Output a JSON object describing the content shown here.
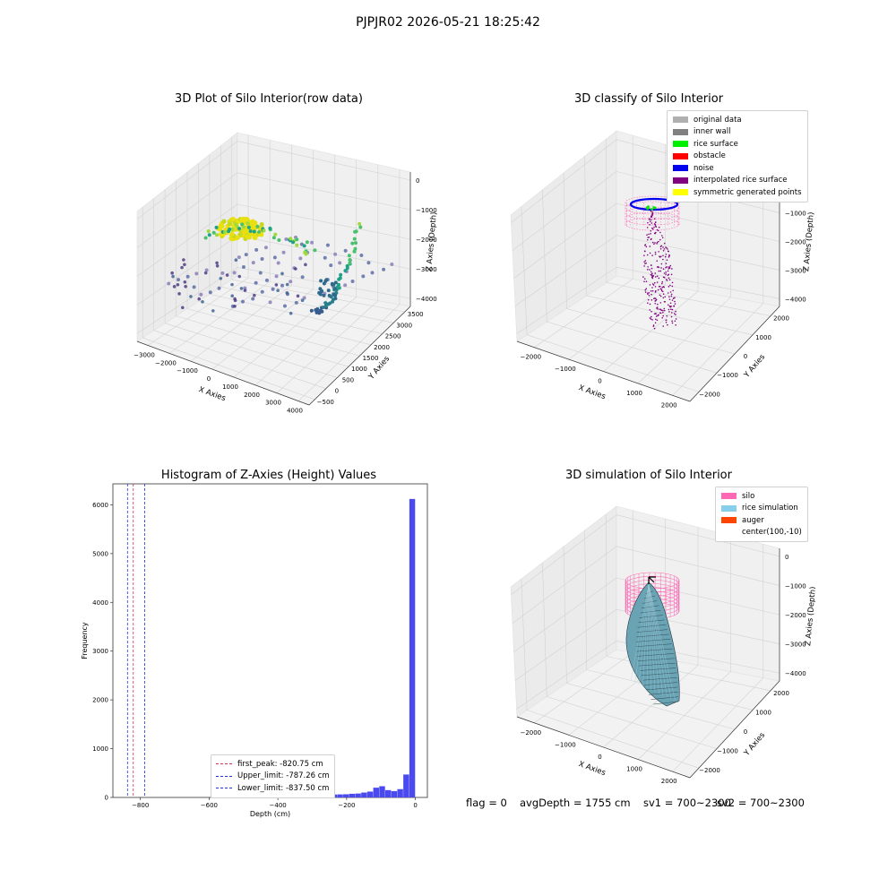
{
  "figure": {
    "suptitle": "PJPJR02 2026-05-21 18:25:42",
    "footer": {
      "flag": "flag = 0",
      "avg_depth": "avgDepth = 1755 cm",
      "sv1": "sv1 = 700~2300",
      "sv2": "sv2 = 700~2300"
    }
  },
  "colors": {
    "hist_bar": "#4a4af0",
    "first_peak": "#cc3355",
    "limit": "#2233dd",
    "original": "#b0b0b0",
    "inner_wall": "#808080",
    "rice_surface": "#00ee00",
    "obstacle": "#ff0000",
    "noise": "#0000ee",
    "interp": "#800080",
    "symmetric": "#ffff00",
    "silo": "#ff69b4",
    "rice_sim": "#87ceeb",
    "auger": "#ff4500"
  },
  "chart_data": [
    {
      "type": "scatter",
      "title": "3D Plot of Silo Interior(row data)",
      "xlabel": "X Axies",
      "ylabel": "Y Axies",
      "zlabel": "Z Axies (Depth)",
      "xticks": [
        "−3000",
        "−2000",
        "−1000",
        "0",
        "1000",
        "2000",
        "3000",
        "4000"
      ],
      "yticks": [
        "−500",
        "0",
        "500",
        "1000",
        "1500",
        "2000",
        "2500",
        "3000",
        "3500"
      ],
      "zticks": [
        "0",
        "−1000",
        "−2000",
        "−3000",
        "−4000"
      ],
      "colormap": "viridis"
    },
    {
      "type": "scatter",
      "title": "3D classify of Silo Interior",
      "xlabel": "X Axies",
      "ylabel": "Y Axies",
      "zlabel": "Z Axies (Depth)",
      "xticks": [
        "−2000",
        "−1000",
        "0",
        "1000",
        "2000"
      ],
      "yticks": [
        "−2000",
        "−1000",
        "0",
        "1000",
        "2000"
      ],
      "zticks": [
        "0",
        "−1000",
        "−2000",
        "−3000",
        "−4000"
      ],
      "legend": [
        "original data",
        "inner wall",
        "rice surface",
        "obstacle",
        "noise",
        "interpolated rice surface",
        "symmetric generated points"
      ]
    },
    {
      "type": "bar",
      "title": "Histogram of Z-Axies (Height) Values",
      "xlabel": "Depth (cm)",
      "ylabel": "Frequency",
      "xlim": [
        -880,
        35
      ],
      "ylim": [
        0,
        6430
      ],
      "xticks": [
        -800,
        -600,
        -400,
        -200,
        0
      ],
      "yticks": [
        0,
        1000,
        2000,
        3000,
        4000,
        5000,
        6000
      ],
      "bin_width": 17.5,
      "bins": [
        {
          "x": -525,
          "value": 12
        },
        {
          "x": -507.5,
          "value": 14
        },
        {
          "x": -490,
          "value": 16
        },
        {
          "x": -472.5,
          "value": 18
        },
        {
          "x": -455,
          "value": 22
        },
        {
          "x": -437.5,
          "value": 26
        },
        {
          "x": -420,
          "value": 40
        },
        {
          "x": -402.5,
          "value": 38
        },
        {
          "x": -385,
          "value": 30
        },
        {
          "x": -367.5,
          "value": 44
        },
        {
          "x": -350,
          "value": 36
        },
        {
          "x": -332.5,
          "value": 40
        },
        {
          "x": -315,
          "value": 42
        },
        {
          "x": -297.5,
          "value": 48
        },
        {
          "x": -280,
          "value": 45
        },
        {
          "x": -262.5,
          "value": 55
        },
        {
          "x": -245,
          "value": 60
        },
        {
          "x": -227.5,
          "value": 62
        },
        {
          "x": -210,
          "value": 65
        },
        {
          "x": -192.5,
          "value": 75
        },
        {
          "x": -175,
          "value": 80
        },
        {
          "x": -157.5,
          "value": 100
        },
        {
          "x": -140,
          "value": 120
        },
        {
          "x": -122.5,
          "value": 200
        },
        {
          "x": -105,
          "value": 230
        },
        {
          "x": -87.5,
          "value": 150
        },
        {
          "x": -70,
          "value": 130
        },
        {
          "x": -52.5,
          "value": 170
        },
        {
          "x": -35,
          "value": 470
        },
        {
          "x": -17.5,
          "value": 6120
        }
      ],
      "vlines": [
        {
          "name": "first_peak",
          "x": -820.75,
          "label": "first_peak: -820.75 cm"
        },
        {
          "name": "upper",
          "x": -787.26,
          "label": "Upper_limit: -787.26 cm"
        },
        {
          "name": "lower",
          "x": -837.5,
          "label": "Lower_limit: -837.50 cm"
        }
      ]
    },
    {
      "type": "area",
      "title": "3D simulation of Silo Interior",
      "xlabel": "X Axies",
      "ylabel": "Y Axies",
      "zlabel": "Z Axies (Depth)",
      "xticks": [
        "−2000",
        "−1000",
        "0",
        "1000",
        "2000"
      ],
      "yticks": [
        "−2000",
        "−1000",
        "0",
        "1000",
        "2000"
      ],
      "zticks": [
        "0",
        "−1000",
        "−2000",
        "−3000",
        "−4000"
      ],
      "legend": [
        "silo",
        "rice simulation",
        "auger",
        "center(100,-10)"
      ]
    }
  ]
}
